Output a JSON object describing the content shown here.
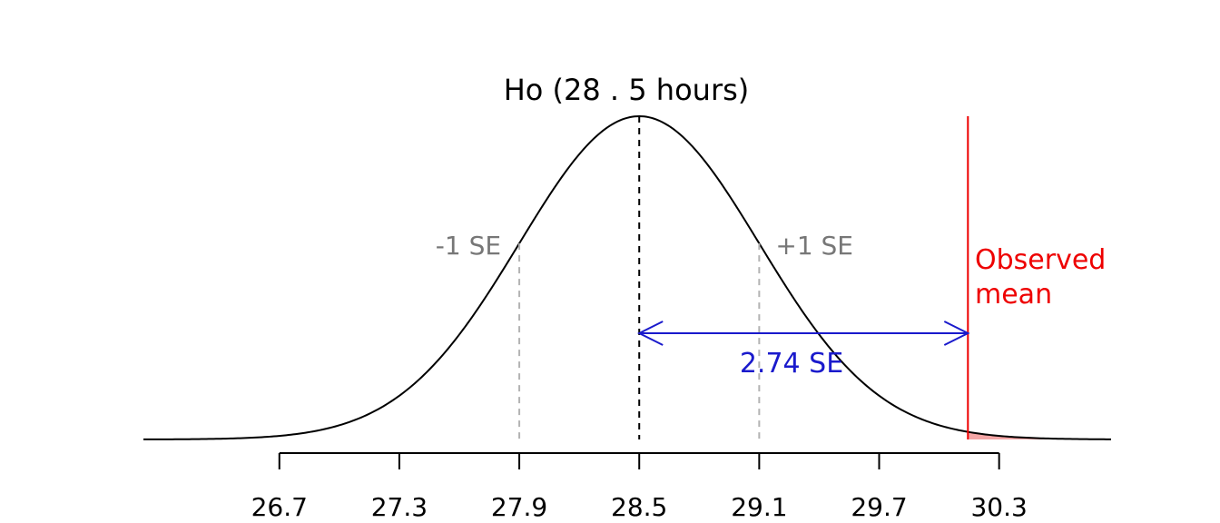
{
  "chart_data": {
    "type": "line",
    "title": "Ho (28 . 5 hours)",
    "xlabel": "",
    "ylabel": "",
    "distribution": {
      "mean": 28.5,
      "se": 0.6
    },
    "xlim": [
      26.02,
      30.86
    ],
    "x_ticks": [
      26.7,
      27.3,
      27.9,
      28.5,
      29.1,
      29.7,
      30.3
    ],
    "x_tick_labels": [
      "26.7",
      "27.3",
      "27.9",
      "28.5",
      "29.1",
      "29.7",
      "30.3"
    ],
    "null_line": {
      "x": 28.5
    },
    "se_lines": [
      {
        "x": 27.9,
        "label": "-1 SE"
      },
      {
        "x": 29.1,
        "label": "+1 SE"
      }
    ],
    "observed_mean": {
      "x": 30.144,
      "label_line1": "Observed",
      "label_line2": "mean"
    },
    "distance": {
      "from": 28.5,
      "to": 30.144,
      "label": "2.74 SE"
    },
    "grid": false,
    "colors": {
      "curve": "#000000",
      "se": "#b3b3b3",
      "se_text": "#777777",
      "observed": "#ee0000",
      "tail_fill": "#f4a6a6",
      "arrow": "#1a1acc"
    }
  }
}
